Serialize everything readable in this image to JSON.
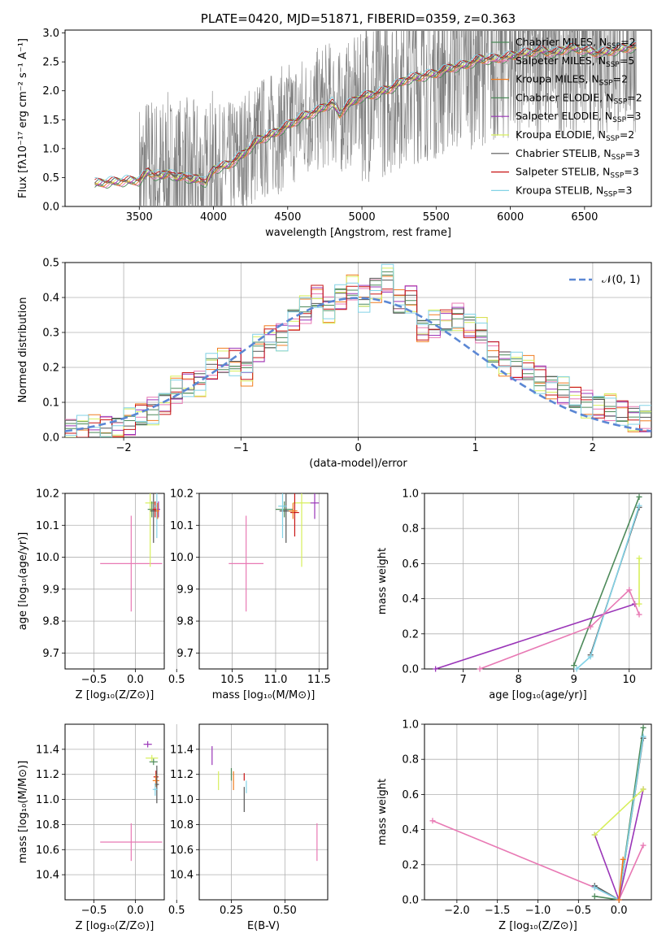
{
  "colors": {
    "data": "#808080",
    "gauss": "#5b87d4",
    "grid": "#b0b0b0",
    "models": [
      "#4d8a5a",
      "#e879b4",
      "#f07c20",
      "#4d8a5a",
      "#9a35b8",
      "#d7ef5c",
      "#555555",
      "#c81414",
      "#82d2e6"
    ]
  },
  "chart_data": [
    {
      "id": "spectrum",
      "type": "line",
      "title": "PLATE=0420, MJD=51871, FIBERID=0359, z=0.363",
      "xlabel": "wavelength [Angstrom, rest frame]",
      "ylabel": "Flux [fλ10⁻¹⁷ erg cm⁻² s⁻¹ A⁻¹]",
      "xlim": [
        3000,
        6950
      ],
      "ylim": [
        0,
        3.05
      ],
      "xticks": [
        "3500",
        "4000",
        "4500",
        "5000",
        "5500",
        "6000",
        "6500"
      ],
      "yticks": [
        "0.0",
        "0.5",
        "1.0",
        "1.5",
        "2.0",
        "2.5",
        "3.0"
      ],
      "model_continuum": {
        "x": [
          3200,
          3300,
          3400,
          3500,
          3560,
          3600,
          3650,
          3700,
          3750,
          3800,
          3850,
          3900,
          3950,
          4000,
          4100,
          4200,
          4300,
          4400,
          4500,
          4600,
          4700,
          4800,
          4850,
          4900,
          5000,
          5100,
          5200,
          5300,
          5400,
          5500,
          5600,
          5700,
          5800,
          5900,
          6000,
          6100,
          6200,
          6300,
          6400,
          6500,
          6600,
          6700,
          6800
        ],
        "y": [
          0.4,
          0.42,
          0.44,
          0.45,
          0.6,
          0.55,
          0.52,
          0.6,
          0.48,
          0.55,
          0.45,
          0.5,
          0.4,
          0.65,
          0.72,
          0.9,
          1.15,
          1.25,
          1.4,
          1.55,
          1.65,
          1.8,
          1.6,
          1.75,
          1.9,
          1.95,
          2.05,
          2.2,
          2.25,
          2.3,
          2.4,
          2.45,
          2.55,
          2.55,
          2.6,
          2.65,
          2.7,
          2.65,
          2.75,
          2.7,
          2.65,
          2.7,
          2.75
        ]
      },
      "legend": [
        "Chabrier MILES, N_SSP=2",
        "Salpeter MILES, N_SSP=5",
        "Kroupa MILES, N_SSP=2",
        "Chabrier ELODIE, N_SSP=2",
        "Salpeter ELODIE, N_SSP=3",
        "Kroupa ELODIE, N_SSP=2",
        "Chabrier STELIB, N_SSP=3",
        "Salpeter STELIB, N_SSP=3",
        "Kroupa STELIB, N_SSP=3"
      ]
    },
    {
      "id": "residuals",
      "type": "line",
      "xlabel": "(data-model)/error",
      "ylabel": "Normed distribution",
      "xlim": [
        -2.5,
        2.5
      ],
      "ylim": [
        0,
        0.5
      ],
      "xticks": [
        -2,
        -1,
        0,
        1,
        2
      ],
      "yticks": [
        "0.0",
        "0.1",
        "0.2",
        "0.3",
        "0.4",
        "0.5"
      ],
      "legend": "𝒩(0, 1)",
      "hist_centers": [
        -2.45,
        -2.35,
        -2.25,
        -2.15,
        -2.05,
        -1.95,
        -1.85,
        -1.75,
        -1.65,
        -1.55,
        -1.45,
        -1.35,
        -1.25,
        -1.15,
        -1.05,
        -0.95,
        -0.85,
        -0.75,
        -0.65,
        -0.55,
        -0.45,
        -0.35,
        -0.25,
        -0.15,
        -0.05,
        0.05,
        0.15,
        0.25,
        0.35,
        0.45,
        0.55,
        0.65,
        0.75,
        0.85,
        0.95,
        1.05,
        1.15,
        1.25,
        1.35,
        1.45,
        1.55,
        1.65,
        1.75,
        1.85,
        1.95,
        2.05,
        2.15,
        2.25,
        2.35,
        2.45
      ],
      "hist_values": [
        0.025,
        0.02,
        0.02,
        0.025,
        0.03,
        0.04,
        0.06,
        0.08,
        0.1,
        0.13,
        0.15,
        0.16,
        0.2,
        0.21,
        0.22,
        0.19,
        0.25,
        0.28,
        0.29,
        0.34,
        0.36,
        0.4,
        0.37,
        0.4,
        0.42,
        0.4,
        0.43,
        0.45,
        0.38,
        0.4,
        0.31,
        0.32,
        0.33,
        0.35,
        0.32,
        0.3,
        0.24,
        0.22,
        0.2,
        0.19,
        0.17,
        0.15,
        0.13,
        0.11,
        0.1,
        0.09,
        0.08,
        0.07,
        0.06,
        0.05
      ]
    },
    {
      "id": "age-vs-Z",
      "type": "scatter",
      "xlabel": "Z [log₁₀(Z/Z⊙)]",
      "ylabel": "age  [log₁₀(age/yr)]",
      "xlim": [
        -0.85,
        0.35
      ],
      "ylim": [
        9.65,
        10.2
      ],
      "xticks": [
        "−0.5",
        "0.0",
        "0.5"
      ],
      "xtickvals": [
        -0.5,
        0.0,
        0.5
      ],
      "yticks": [
        "9.7",
        "9.8",
        "9.9",
        "10.0",
        "10.1",
        "10.2"
      ],
      "points": [
        {
          "x": -0.05,
          "y": 9.98,
          "xe": 0.75,
          "ye": 0.3,
          "c": 1
        },
        {
          "x": 0.18,
          "y": 10.17,
          "xe": 0.12,
          "ye": 0.4,
          "c": 5
        },
        {
          "x": 0.2,
          "y": 10.15,
          "xe": 0.1,
          "ye": 0.05,
          "c": 0
        },
        {
          "x": 0.22,
          "y": 10.145,
          "xe": 0.08,
          "ye": 0.2,
          "c": 6
        },
        {
          "x": 0.24,
          "y": 10.15,
          "xe": 0.06,
          "ye": 0.05,
          "c": 7
        },
        {
          "x": 0.26,
          "y": 10.16,
          "xe": 0.05,
          "ye": 0.2,
          "c": 8
        },
        {
          "x": 0.28,
          "y": 10.15,
          "xe": 0.04,
          "ye": 0.05,
          "c": 4
        },
        {
          "x": 0.27,
          "y": 10.145,
          "xe": 0.04,
          "ye": 0.05,
          "c": 2
        }
      ]
    },
    {
      "id": "age-vs-mass",
      "type": "scatter",
      "xlabel": "mass [log₁₀(M/M⊙)]",
      "ylabel": "",
      "xlim": [
        10.12,
        11.6
      ],
      "ylim": [
        9.65,
        10.2
      ],
      "xticks": [
        "10.5",
        "11.0",
        "11.5"
      ],
      "xtickvals": [
        10.5,
        11.0,
        11.5
      ],
      "yticks": [
        "9.7",
        "9.8",
        "9.9",
        "10.0",
        "10.1",
        "10.2"
      ],
      "points": [
        {
          "x": 10.66,
          "y": 9.98,
          "xe": 0.4,
          "ye": 0.3,
          "c": 1
        },
        {
          "x": 11.3,
          "y": 10.17,
          "xe": 0.2,
          "ye": 0.4,
          "c": 5
        },
        {
          "x": 11.1,
          "y": 10.15,
          "xe": 0.2,
          "ye": 0.05,
          "c": 0
        },
        {
          "x": 11.12,
          "y": 10.145,
          "xe": 0.15,
          "ye": 0.2,
          "c": 6
        },
        {
          "x": 11.22,
          "y": 10.14,
          "xe": 0.1,
          "ye": 0.15,
          "c": 7
        },
        {
          "x": 11.08,
          "y": 10.16,
          "xe": 0.1,
          "ye": 0.2,
          "c": 8
        },
        {
          "x": 11.45,
          "y": 10.17,
          "xe": 0.1,
          "ye": 0.1,
          "c": 4
        },
        {
          "x": 11.2,
          "y": 10.145,
          "xe": 0.1,
          "ye": 0.05,
          "c": 2
        }
      ]
    },
    {
      "id": "weight-vs-age",
      "type": "line",
      "xlabel": "age  [log₁₀(age/yr)]",
      "ylabel": "mass weight",
      "xlim": [
        6.3,
        10.4
      ],
      "ylim": [
        0,
        1.0
      ],
      "xticks": [
        "7",
        "8",
        "9",
        "10"
      ],
      "xtickvals": [
        7,
        8,
        9,
        10
      ],
      "yticks": [
        "0.0",
        "0.2",
        "0.4",
        "0.6",
        "0.8",
        "1.0"
      ],
      "series": [
        {
          "c": 0,
          "x": [
            9.0,
            10.18
          ],
          "y": [
            0.02,
            0.98
          ]
        },
        {
          "c": 6,
          "x": [
            9.3,
            10.18
          ],
          "y": [
            0.08,
            0.92
          ]
        },
        {
          "c": 8,
          "x": [
            9.05,
            9.3,
            10.18
          ],
          "y": [
            0.0,
            0.07,
            0.93
          ]
        },
        {
          "c": 4,
          "x": [
            6.5,
            10.1
          ],
          "y": [
            0.0,
            0.37
          ]
        },
        {
          "c": 1,
          "x": [
            7.3,
            9.3,
            10.0,
            10.18
          ],
          "y": [
            0.0,
            0.24,
            0.45,
            0.31
          ]
        },
        {
          "c": 5,
          "x": [
            10.18,
            10.18
          ],
          "y": [
            0.37,
            0.63
          ]
        }
      ]
    },
    {
      "id": "mass-vs-Z",
      "type": "scatter",
      "xlabel": "Z [log₁₀(Z/Z⊙)]",
      "ylabel": "mass [log₁₀(M/M⊙)]",
      "xlim": [
        -0.85,
        0.35
      ],
      "ylim": [
        10.2,
        11.6
      ],
      "xticks": [
        "−0.5",
        "0.0",
        "0.5"
      ],
      "xtickvals": [
        -0.5,
        0.0,
        0.5
      ],
      "yticks": [
        "10.4",
        "10.6",
        "10.8",
        "11.0",
        "11.2",
        "11.4"
      ],
      "points": [
        {
          "x": -0.05,
          "y": 10.66,
          "xe": 0.75,
          "ye": 0.3,
          "c": 1
        },
        {
          "x": 0.15,
          "y": 11.44,
          "xe": 0.1,
          "ye": 0.05,
          "c": 4
        },
        {
          "x": 0.2,
          "y": 11.33,
          "xe": 0.15,
          "ye": 0.05,
          "c": 5
        },
        {
          "x": 0.22,
          "y": 11.3,
          "xe": 0.1,
          "ye": 0.05,
          "c": 0
        },
        {
          "x": 0.25,
          "y": 11.18,
          "xe": 0.06,
          "ye": 0.1,
          "c": 7
        },
        {
          "x": 0.25,
          "y": 11.15,
          "xe": 0.08,
          "ye": 0.1,
          "c": 2
        },
        {
          "x": 0.26,
          "y": 11.12,
          "xe": 0.05,
          "ye": 0.3,
          "c": 6
        },
        {
          "x": 0.24,
          "y": 11.08,
          "xe": 0.06,
          "ye": 0.1,
          "c": 8
        }
      ]
    },
    {
      "id": "mass-vs-EBV",
      "type": "scatter",
      "xlabel": "E(B-V)",
      "ylabel": "",
      "xlim": [
        0.1,
        0.7
      ],
      "ylim": [
        10.2,
        11.6
      ],
      "xticks": [
        "0.25",
        "0.50"
      ],
      "xtickvals": [
        0.25,
        0.5
      ],
      "yticks": [
        "10.4",
        "10.6",
        "10.8",
        "11.0",
        "11.2",
        "11.4"
      ],
      "points": [
        {
          "x": 0.16,
          "y": 11.35,
          "xe": 0.0,
          "ye": 0.15,
          "c": 4
        },
        {
          "x": 0.19,
          "y": 11.15,
          "xe": 0.0,
          "ye": 0.15,
          "c": 5
        },
        {
          "x": 0.25,
          "y": 11.2,
          "xe": 0.0,
          "ye": 0.1,
          "c": 0
        },
        {
          "x": 0.26,
          "y": 11.15,
          "xe": 0.0,
          "ye": 0.15,
          "c": 2
        },
        {
          "x": 0.31,
          "y": 11.18,
          "xe": 0.0,
          "ye": 0.06,
          "c": 7
        },
        {
          "x": 0.31,
          "y": 11.0,
          "xe": 0.0,
          "ye": 0.2,
          "c": 6
        },
        {
          "x": 0.32,
          "y": 11.1,
          "xe": 0.0,
          "ye": 0.1,
          "c": 8
        },
        {
          "x": 0.65,
          "y": 10.66,
          "xe": 0.0,
          "ye": 0.3,
          "c": 1
        }
      ]
    },
    {
      "id": "weight-vs-Z",
      "type": "line",
      "xlabel": "Z [log₁₀(Z/Z⊙)]",
      "ylabel": "mass weight",
      "xlim": [
        -2.4,
        0.4
      ],
      "ylim": [
        0,
        1.0
      ],
      "xticks": [
        "−2.0",
        "−1.5",
        "−1.0",
        "−0.5",
        "0.0"
      ],
      "xtickvals": [
        -2.0,
        -1.5,
        -1.0,
        -0.5,
        0.0
      ],
      "yticks": [
        "0.0",
        "0.2",
        "0.4",
        "0.6",
        "0.8",
        "1.0"
      ],
      "series": [
        {
          "c": 1,
          "x": [
            -2.3,
            -0.3,
            0.0,
            0.3
          ],
          "y": [
            0.45,
            0.07,
            0.0,
            0.31
          ]
        },
        {
          "c": 0,
          "x": [
            -0.3,
            0.0,
            0.3
          ],
          "y": [
            0.02,
            0.0,
            0.98
          ]
        },
        {
          "c": 6,
          "x": [
            -0.3,
            0.0,
            0.3
          ],
          "y": [
            0.08,
            0.0,
            0.92
          ]
        },
        {
          "c": 8,
          "x": [
            -0.3,
            0.0,
            0.3
          ],
          "y": [
            0.07,
            0.0,
            0.93
          ]
        },
        {
          "c": 4,
          "x": [
            -0.3,
            0.0,
            0.3
          ],
          "y": [
            0.37,
            0.0,
            0.63
          ]
        },
        {
          "c": 5,
          "x": [
            -0.3,
            0.3
          ],
          "y": [
            0.37,
            0.63
          ]
        },
        {
          "c": 2,
          "x": [
            0.0,
            0.05
          ],
          "y": [
            0.0,
            0.23
          ]
        }
      ]
    }
  ]
}
